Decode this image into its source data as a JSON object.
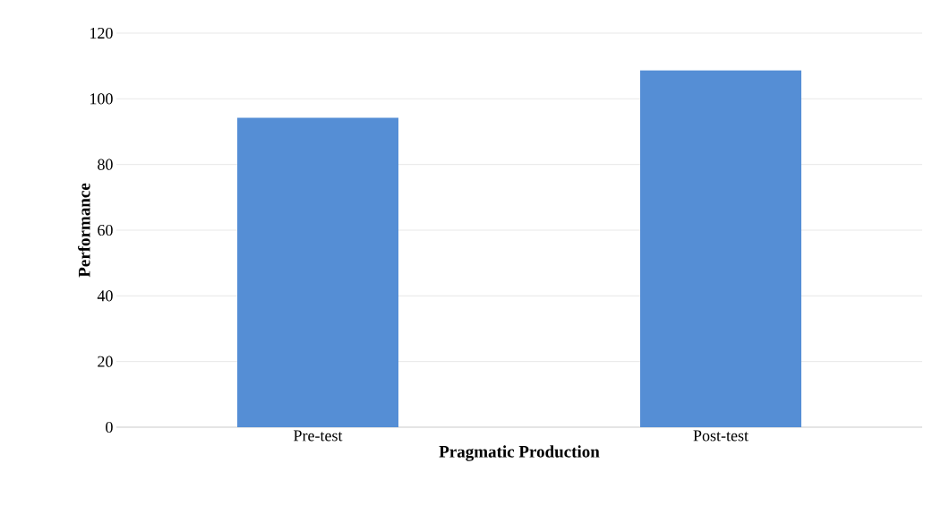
{
  "chart_data": {
    "type": "bar",
    "xlabel": "Pragmatic Production",
    "ylabel": "Performance",
    "categories": [
      "Pre-test",
      "Post-test"
    ],
    "values": [
      94.2,
      108.7
    ],
    "color": "#558ed5",
    "ylim": [
      0,
      120
    ],
    "yticks": [
      0,
      20,
      40,
      60,
      80,
      100,
      120
    ],
    "grid": "y"
  }
}
